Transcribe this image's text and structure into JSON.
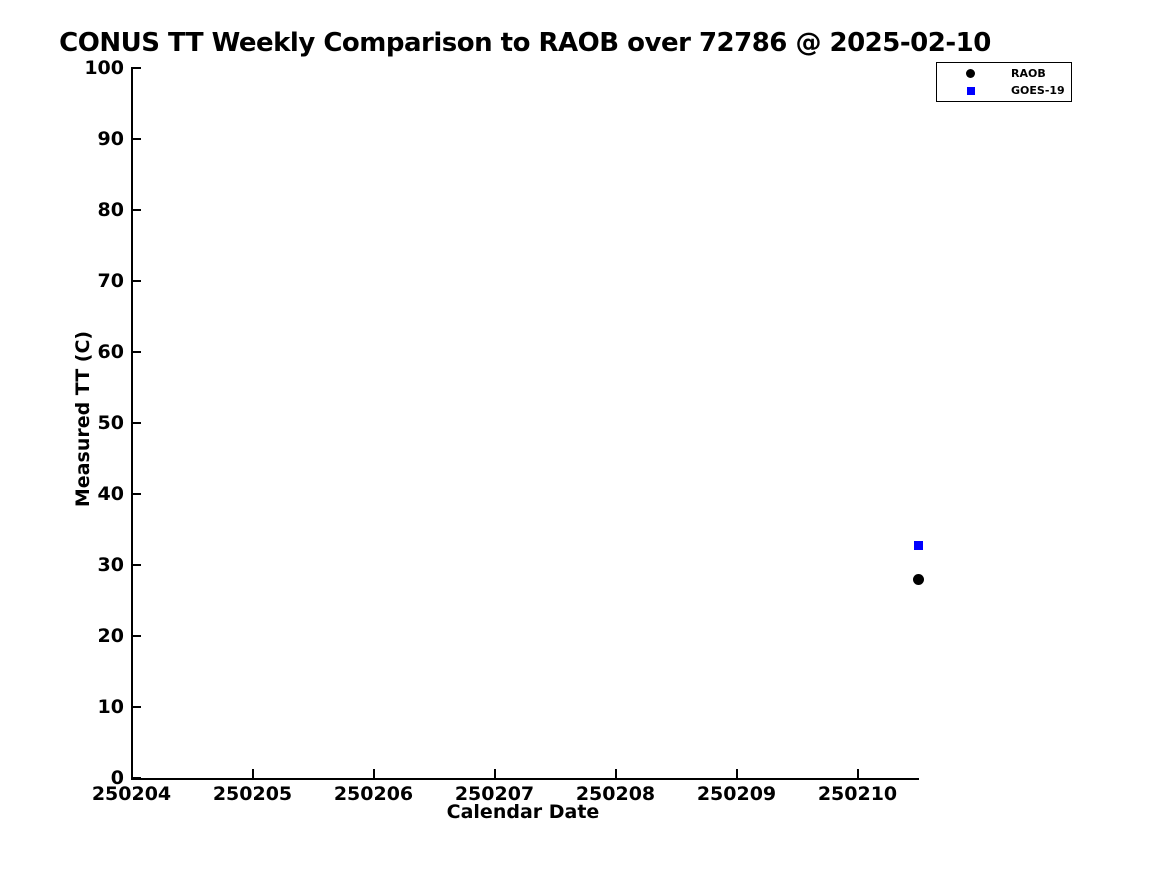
{
  "chart_data": {
    "type": "scatter",
    "title": "CONUS TT Weekly Comparison to RAOB over 72786 @ 2025-02-10",
    "xlabel": "Calendar Date",
    "ylabel": "Measured TT (C)",
    "xlim": [
      250204,
      250210.5
    ],
    "ylim": [
      0,
      100
    ],
    "xticks": [
      250204,
      250205,
      250206,
      250207,
      250208,
      250209,
      250210
    ],
    "yticks": [
      0,
      10,
      20,
      30,
      40,
      50,
      60,
      70,
      80,
      90,
      100
    ],
    "grid": false,
    "legend_position": "top-right",
    "background_color": "#ffffff",
    "axis_color": "#000000",
    "series": [
      {
        "name": "RAOB",
        "marker": "circle",
        "color": "#000000",
        "points": [
          {
            "x": 250210.5,
            "y": 27.9
          }
        ]
      },
      {
        "name": "GOES-19",
        "marker": "square",
        "color": "#0000ff",
        "points": [
          {
            "x": 250210.5,
            "y": 32.8
          }
        ]
      }
    ]
  }
}
